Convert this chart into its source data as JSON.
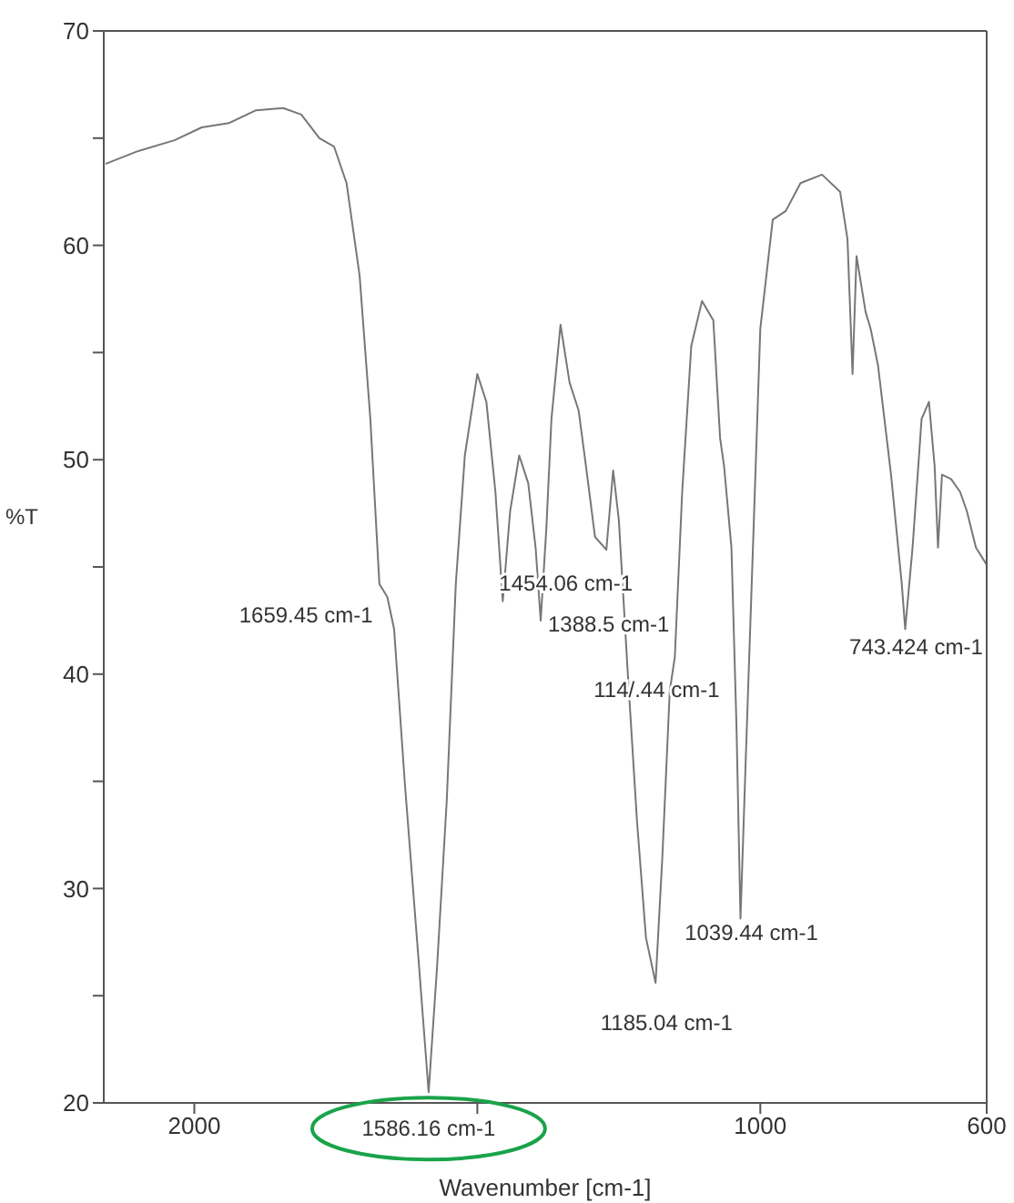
{
  "chart_data": {
    "type": "line",
    "xlabel": "Wavenumber [cm-1]",
    "ylabel": "%T",
    "xlim": [
      2160,
      600
    ],
    "ylim": [
      20,
      70
    ],
    "xticks": [
      2000,
      {
        "value": 1500,
        "label": null
      },
      1000,
      600
    ],
    "yticks": [
      20,
      {
        "value": 25,
        "label": null
      },
      30,
      {
        "value": 35,
        "label": null
      },
      40,
      {
        "value": 45,
        "label": null
      },
      50,
      {
        "value": 55,
        "label": null
      },
      60,
      {
        "value": 65,
        "label": null
      },
      70
    ],
    "annotations": [
      {
        "text": "1586.16 cm-1",
        "x": 1586,
        "y": 20.5
      },
      {
        "text": "1659.45 cm-1",
        "x": 1659,
        "y": 43.6
      },
      {
        "text": "1454.06 cm-1",
        "x": 1455,
        "y": 43.4
      },
      {
        "text": "1388.5 cm-1",
        "x": 1388,
        "y": 42.5
      },
      {
        "text": "114/.44 cm-1",
        "x": 1151,
        "y": 40.8
      },
      {
        "text": "1185.04 cm-1",
        "x": 1185,
        "y": 25.6
      },
      {
        "text": "1039.44 cm-1",
        "x": 1035,
        "y": 28.6
      },
      {
        "text": "743.424 cm-1",
        "x": 744,
        "y": 42.1
      }
    ],
    "series": [
      {
        "color": "#777777",
        "x": [
          2157,
          2099,
          2035,
          1987,
          1939,
          1891,
          1843,
          1811,
          1779,
          1753,
          1731,
          1708,
          1689,
          1673,
          1659,
          1647,
          1628,
          1603,
          1586,
          1571,
          1554,
          1538,
          1522,
          1500,
          1484,
          1468,
          1455,
          1442,
          1426,
          1410,
          1397,
          1388,
          1378,
          1369,
          1353,
          1337,
          1321,
          1308,
          1292,
          1272,
          1260,
          1250,
          1234,
          1218,
          1202,
          1185,
          1173,
          1160,
          1151,
          1138,
          1122,
          1103,
          1083,
          1071,
          1064,
          1051,
          1042,
          1035,
          1026,
          1013,
          1000,
          978,
          955,
          929,
          891,
          859,
          846,
          837,
          830,
          814,
          805,
          792,
          769,
          750,
          744,
          731,
          715,
          702,
          692,
          686,
          679,
          663,
          647,
          635,
          619,
          600
        ],
        "values": [
          63.8,
          64.4,
          64.9,
          65.5,
          65.7,
          66.3,
          66.4,
          66.1,
          65.0,
          64.6,
          62.9,
          58.6,
          51.9,
          44.2,
          43.6,
          42.1,
          34.9,
          26.4,
          20.5,
          26.4,
          34.1,
          44.2,
          50.2,
          54.0,
          52.7,
          48.5,
          43.4,
          47.6,
          50.2,
          48.9,
          45.9,
          42.5,
          46.8,
          51.9,
          56.3,
          53.6,
          52.3,
          49.7,
          46.4,
          45.8,
          49.5,
          47.2,
          40.0,
          33.2,
          27.7,
          25.6,
          31.5,
          39.2,
          40.8,
          48.5,
          55.3,
          57.4,
          56.5,
          51.0,
          49.7,
          45.9,
          37.5,
          28.6,
          35.8,
          45.9,
          56.1,
          61.2,
          61.6,
          62.9,
          63.3,
          62.5,
          60.3,
          54.0,
          59.5,
          56.9,
          56.1,
          54.4,
          49.3,
          44.2,
          42.1,
          45.9,
          51.9,
          52.7,
          49.7,
          45.9,
          49.3,
          49.1,
          48.5,
          47.6,
          45.9,
          45.1
        ]
      }
    ]
  }
}
